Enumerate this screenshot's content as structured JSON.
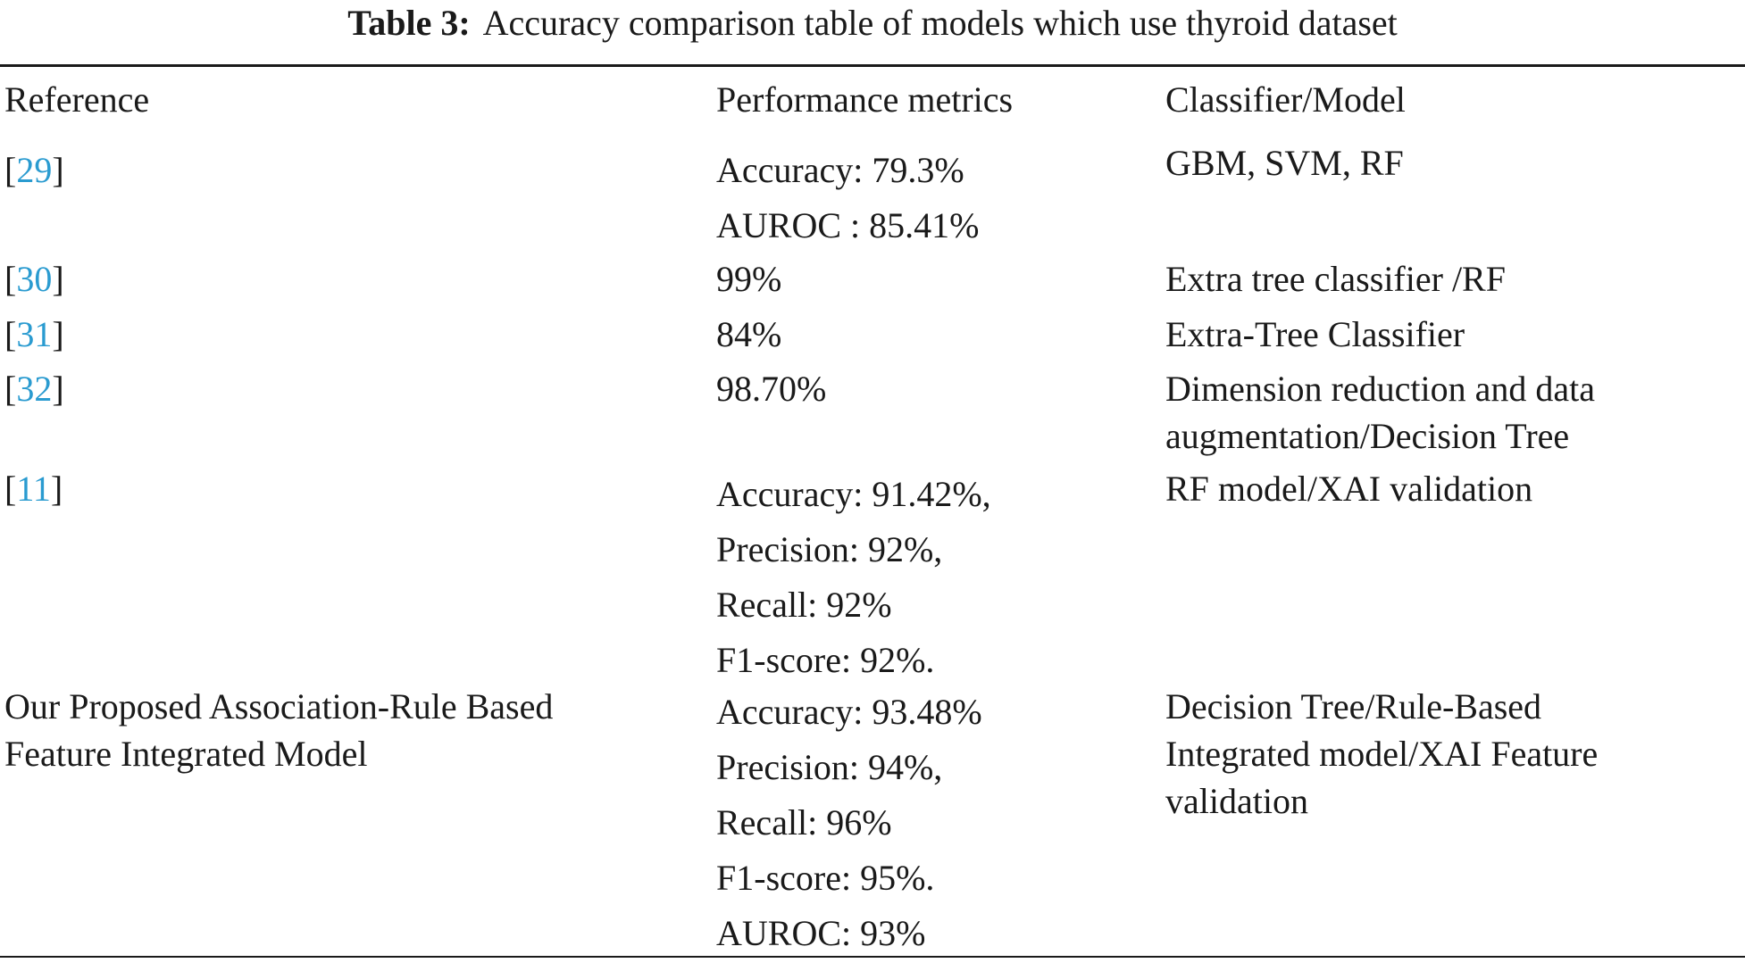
{
  "caption": {
    "label": "Table 3:",
    "text": "Accuracy comparison table of models which use thyroid dataset"
  },
  "columns": {
    "reference": "Reference",
    "metrics": "Performance metrics",
    "model": "Classifier/Model"
  },
  "rows": [
    {
      "ref": "29",
      "metrics": [
        "Accuracy: 79.3%",
        "AUROC : 85.41%"
      ],
      "model": [
        "GBM, SVM, RF"
      ]
    },
    {
      "ref": "30",
      "metrics": [
        "99%"
      ],
      "model": [
        "Extra tree classifier /RF"
      ]
    },
    {
      "ref": "31",
      "metrics": [
        "84%"
      ],
      "model": [
        "Extra-Tree Classifier"
      ]
    },
    {
      "ref": "32",
      "metrics": [
        "98.70%"
      ],
      "model": [
        "Dimension reduction and data",
        "augmentation/Decision Tree"
      ]
    },
    {
      "ref": "11",
      "metrics": [
        "Accuracy: 91.42%,",
        "Precision: 92%,",
        "Recall: 92%",
        "F1-score: 92%."
      ],
      "model": [
        "RF model/XAI validation"
      ]
    },
    {
      "ref_text": [
        "Our Proposed Association-Rule Based",
        "Feature Integrated Model"
      ],
      "metrics": [
        "Accuracy: 93.48%",
        "Precision: 94%,",
        "Recall: 96%",
        "F1-score: 95%.",
        "AUROC: 93%"
      ],
      "model": [
        "Decision Tree/Rule-Based",
        "Integrated model/XAI Feature",
        "validation"
      ]
    }
  ],
  "colors": {
    "text": "#1a1a1a",
    "link": "#2a9bd0"
  }
}
